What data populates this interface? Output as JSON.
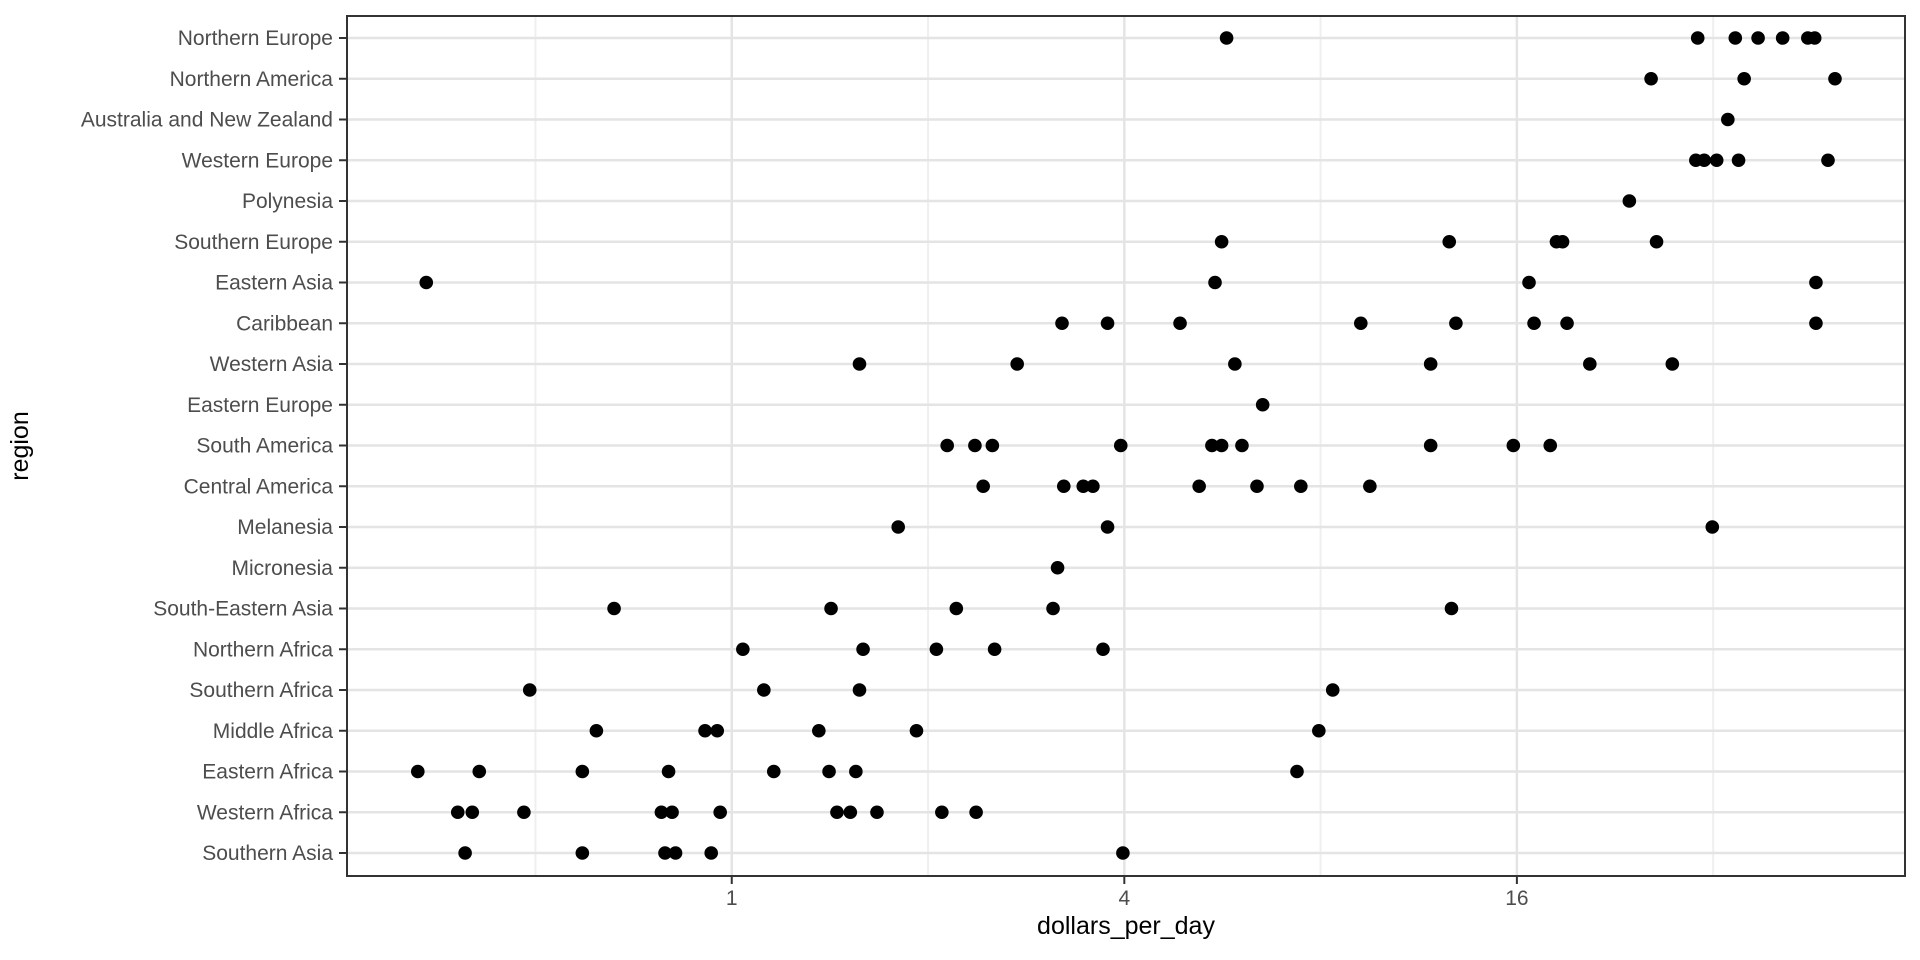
{
  "axes": {
    "x_title": "dollars_per_day",
    "y_title": "region"
  },
  "colors": {
    "point": "#000000",
    "panel_background": "#ffffff",
    "panel_border": "#333333",
    "grid_major": "#e4e4e4",
    "grid_minor": "#efefef",
    "tick_mark": "#333333",
    "axis_text": "#4d4d4d",
    "axis_title": "#000000"
  },
  "chart_data": {
    "type": "scatter",
    "title": "",
    "xlabel": "dollars_per_day",
    "ylabel": "region",
    "x_scale": "log2",
    "xlim": [
      0.257,
      63.0
    ],
    "x_major_ticks": [
      1,
      4,
      16
    ],
    "x_tick_labels": [
      "1",
      "4",
      "16"
    ],
    "x_minor_gridlines": [
      0.5,
      2,
      8,
      32
    ],
    "grid": "horizontal major per category; vertical major+minor light gray",
    "legend_position": "none",
    "categories": [
      "Northern Europe",
      "Northern America",
      "Australia and New Zealand",
      "Western Europe",
      "Polynesia",
      "Southern Europe",
      "Eastern Asia",
      "Caribbean",
      "Western Asia",
      "Eastern Europe",
      "South America",
      "Central America",
      "Melanesia",
      "Micronesia",
      "South-Eastern Asia",
      "Northern Africa",
      "Southern Africa",
      "Middle Africa",
      "Eastern Africa",
      "Western Africa",
      "Southern Asia"
    ],
    "series": [
      {
        "name": "Northern Europe",
        "values": [
          5.74,
          30.3,
          34.6,
          37.5,
          40.9,
          44.7,
          45.8
        ]
      },
      {
        "name": "Northern America",
        "values": [
          25.7,
          35.7,
          49.2
        ]
      },
      {
        "name": "Australia and New Zealand",
        "values": [
          33.7
        ]
      },
      {
        "name": "Western Europe",
        "values": [
          30.1,
          31.0,
          32.4,
          35.0,
          48.0
        ]
      },
      {
        "name": "Polynesia",
        "values": [
          23.8
        ]
      },
      {
        "name": "Southern Europe",
        "values": [
          5.64,
          12.6,
          18.4,
          18.8,
          26.2
        ]
      },
      {
        "name": "Eastern Asia",
        "values": [
          0.34,
          5.51,
          16.7,
          46.0
        ]
      },
      {
        "name": "Caribbean",
        "values": [
          3.21,
          3.77,
          4.87,
          9.22,
          12.9,
          17.0,
          19.1,
          46.0
        ]
      },
      {
        "name": "Western Asia",
        "values": [
          1.57,
          2.74,
          5.91,
          11.8,
          20.7,
          27.7
        ]
      },
      {
        "name": "Eastern Europe",
        "values": [
          6.52
        ]
      },
      {
        "name": "South America",
        "values": [
          2.14,
          2.36,
          2.51,
          3.95,
          5.45,
          5.64,
          6.06,
          11.8,
          15.8,
          18.0
        ]
      },
      {
        "name": "Central America",
        "values": [
          2.43,
          3.23,
          3.46,
          3.58,
          5.21,
          6.39,
          7.46,
          9.52
        ]
      },
      {
        "name": "Melanesia",
        "values": [
          1.8,
          3.77,
          31.9
        ]
      },
      {
        "name": "Micronesia",
        "values": [
          3.16
        ]
      },
      {
        "name": "South-Eastern Asia",
        "values": [
          0.66,
          1.42,
          2.21,
          3.11,
          12.7
        ]
      },
      {
        "name": "Northern Africa",
        "values": [
          1.04,
          1.59,
          2.06,
          2.53,
          3.71
        ]
      },
      {
        "name": "Southern Africa",
        "values": [
          0.49,
          1.12,
          1.57,
          8.35
        ]
      },
      {
        "name": "Middle Africa",
        "values": [
          0.62,
          0.91,
          0.95,
          1.36,
          1.92,
          7.95
        ]
      },
      {
        "name": "Eastern Africa",
        "values": [
          0.33,
          0.41,
          0.59,
          0.8,
          1.16,
          1.41,
          1.55,
          7.36
        ]
      },
      {
        "name": "Western Africa",
        "values": [
          0.38,
          0.4,
          0.48,
          0.78,
          0.81,
          0.96,
          1.45,
          1.52,
          1.67,
          2.1,
          2.37
        ]
      },
      {
        "name": "Southern Asia",
        "values": [
          0.39,
          0.59,
          0.79,
          0.82,
          0.93,
          3.98
        ]
      }
    ]
  }
}
